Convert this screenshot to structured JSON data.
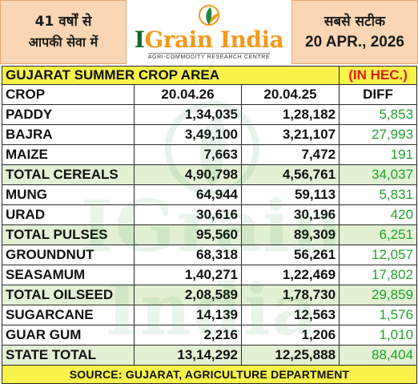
{
  "header": {
    "left_line1": "41 वर्षों से",
    "left_line2": "आपकी सेवा में",
    "right_line1": "सबसे सटीक",
    "right_line2": "20 APR., 2026",
    "logo_name_part1": "I",
    "logo_name_part2": "Grain India",
    "logo_tagline": "AGRI-COMMODITY RESEARCH CENTRE"
  },
  "table": {
    "title": "GUJARAT SUMMER CROP AREA",
    "unit": "(IN HEC.)",
    "columns": [
      "CROP",
      "20.04.26",
      "20.04.25",
      "DIFF"
    ],
    "rows": [
      {
        "crop": "PADDY",
        "cur": "1,34,035",
        "prev": "1,28,182",
        "diff": "5,853"
      },
      {
        "crop": "BAJRA",
        "cur": "3,49,100",
        "prev": "3,21,107",
        "diff": "27,993"
      },
      {
        "crop": "MAIZE",
        "cur": "7,663",
        "prev": "7,472",
        "diff": "191"
      },
      {
        "crop": "TOTAL CEREALS",
        "cur": "4,90,798",
        "prev": "4,56,761",
        "diff": "34,037"
      },
      {
        "crop": "MUNG",
        "cur": "64,944",
        "prev": "59,113",
        "diff": "5,831"
      },
      {
        "crop": "URAD",
        "cur": "30,616",
        "prev": "30,196",
        "diff": "420"
      },
      {
        "crop": "TOTAL PULSES",
        "cur": "95,560",
        "prev": "89,309",
        "diff": "6,251"
      },
      {
        "crop": "GROUNDNUT",
        "cur": "68,318",
        "prev": "56,261",
        "diff": "12,057"
      },
      {
        "crop": "SEASAMUM",
        "cur": "1,40,271",
        "prev": "1,22,469",
        "diff": "17,802"
      },
      {
        "crop": "TOTAL OILSEED",
        "cur": "2,08,589",
        "prev": "1,78,730",
        "diff": "29,859"
      },
      {
        "crop": "SUGARCANE",
        "cur": "14,139",
        "prev": "12,563",
        "diff": "1,576"
      },
      {
        "crop": "GUAR GUM",
        "cur": "2,216",
        "prev": "1,206",
        "diff": "1,010"
      },
      {
        "crop": "STATE TOTAL",
        "cur": "13,14,292",
        "prev": "12,25,888",
        "diff": "88,404"
      }
    ],
    "source": "SOURCE: GUJARAT, AGRICULTURE DEPARTMENT"
  },
  "watermark": "IGrain India",
  "colors": {
    "header_box": "#fbd6b4",
    "title_band": "#f7f34a",
    "unit_text": "#e01f1f",
    "diff_text": "#1fa22a",
    "logo_green": "#0f6d2c",
    "logo_orange": "#f39a1a",
    "total_row": "#ddefcc"
  }
}
